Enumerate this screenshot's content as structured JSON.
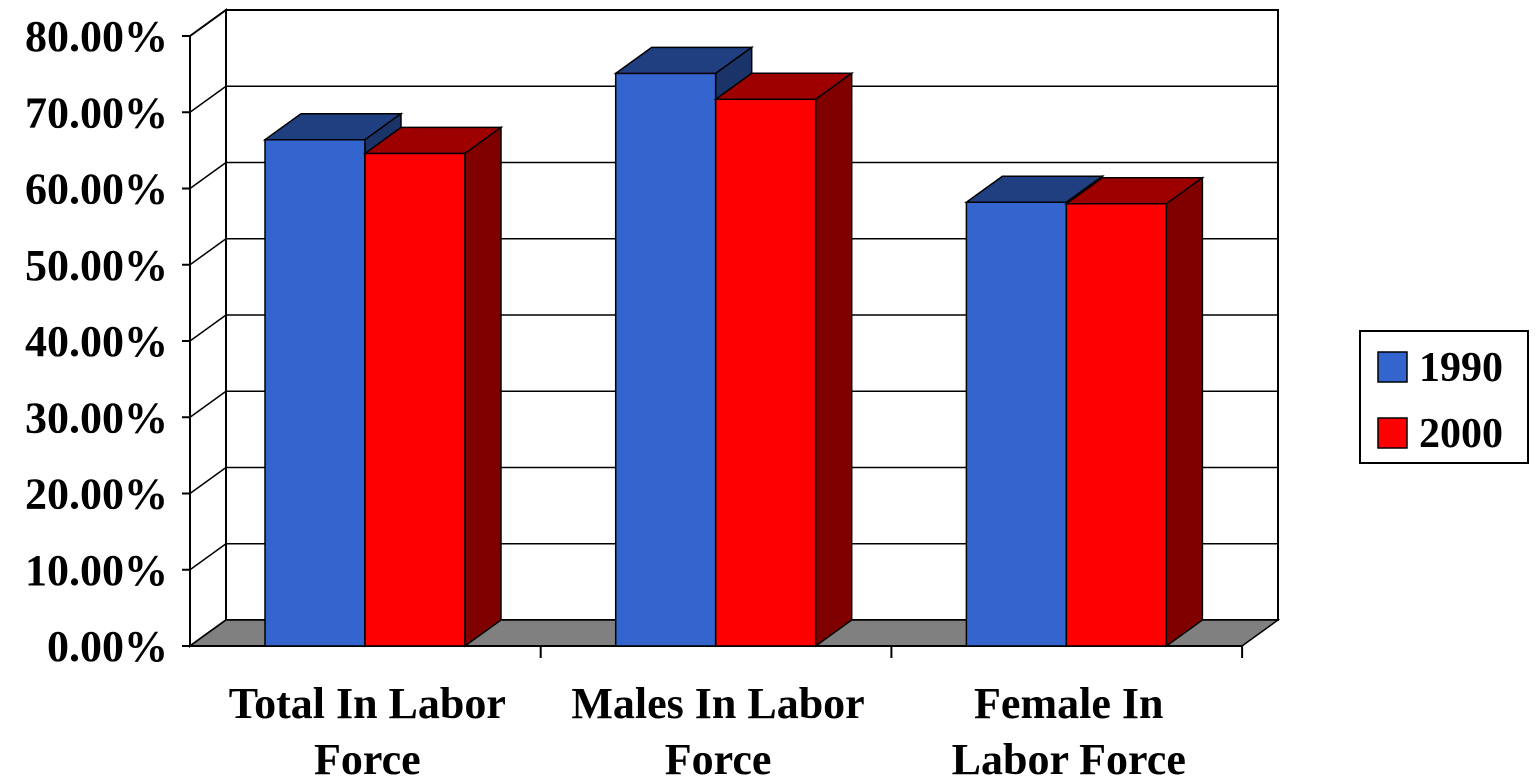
{
  "chart_data": {
    "type": "bar",
    "title": "",
    "xlabel": "",
    "ylabel": "",
    "categories": [
      [
        "Total In Labor",
        "Force"
      ],
      [
        "Males In Labor",
        "Force"
      ],
      [
        "Female In",
        "Labor Force"
      ]
    ],
    "series": [
      {
        "name": "1990",
        "color": "#3465CF",
        "values": [
          0.664,
          0.751,
          0.582
        ]
      },
      {
        "name": "2000",
        "color": "#FF0000",
        "values": [
          0.646,
          0.717,
          0.58
        ]
      }
    ],
    "ylim": [
      0,
      0.8
    ],
    "yticks": [
      "0.00%",
      "10.00%",
      "20.00%",
      "30.00%",
      "40.00%",
      "50.00%",
      "60.00%",
      "70.00%",
      "80.00%"
    ],
    "grid": true,
    "legend": "right",
    "floor_color": "#808080"
  }
}
